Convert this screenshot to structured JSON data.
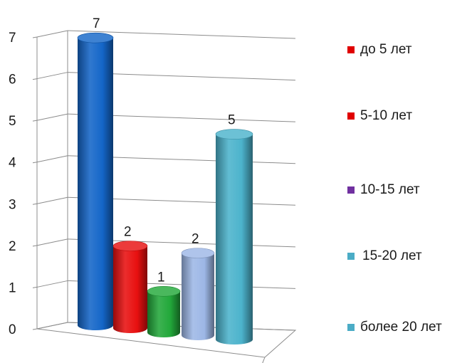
{
  "chart_data": {
    "type": "bar",
    "title": "",
    "xlabel": "",
    "ylabel": "",
    "ylim": [
      0,
      7
    ],
    "yticks": [
      0,
      1,
      2,
      3,
      4,
      5,
      6,
      7
    ],
    "grid": true,
    "three_d": true,
    "bar_shape": "cylinder",
    "legend_position": "right",
    "series": [
      {
        "name": "до 5 лет",
        "value": 7,
        "label": "7",
        "color": "#1466c8",
        "legend_color": "#e00000"
      },
      {
        "name": "5-10 лет",
        "value": 2,
        "label": "2",
        "color": "#e81010",
        "legend_color": "#e00000"
      },
      {
        "name": "10-15 лет",
        "value": 1,
        "label": "1",
        "color": "#22a83a",
        "legend_color": "#7030a0"
      },
      {
        "name": "15-20 лет",
        "value": 2,
        "label": "2",
        "color": "#9db7e6",
        "legend_color": "#4bacc6"
      },
      {
        "name": "более 20 лет",
        "value": 5,
        "label": "5",
        "color": "#4cb3cc",
        "legend_color": "#4bacc6"
      }
    ]
  }
}
